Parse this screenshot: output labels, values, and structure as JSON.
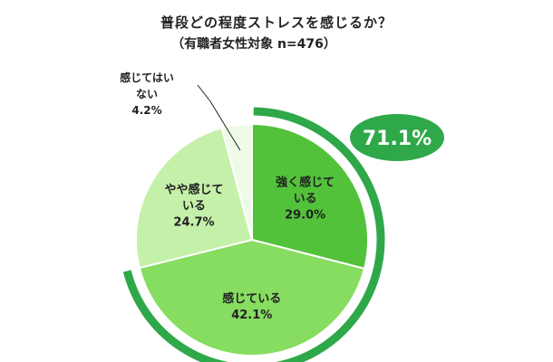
{
  "chart_data": {
    "type": "pie",
    "title": "普段どの程度ストレスを感じるか？",
    "subtitle": "（有職者女性対象 n=476）",
    "slices": [
      {
        "label_lines": [
          "強く感じて",
          "いる"
        ],
        "value_text": "29.0%",
        "value": 29.0,
        "color": "#52c23a"
      },
      {
        "label_lines": [
          "感じている"
        ],
        "value_text": "42.1%",
        "value": 42.1,
        "color": "#86dd60"
      },
      {
        "label_lines": [
          "やや感じて",
          "いる"
        ],
        "value_text": "24.7%",
        "value": 24.7,
        "color": "#c5f0aa"
      },
      {
        "label_lines": [
          "感じてはい",
          "ない"
        ],
        "value_text": "4.2%",
        "value": 4.2,
        "color": "#eefbe7"
      }
    ],
    "highlight": {
      "text": "71.1%",
      "value": 71.1,
      "color": "#2ea849"
    }
  }
}
